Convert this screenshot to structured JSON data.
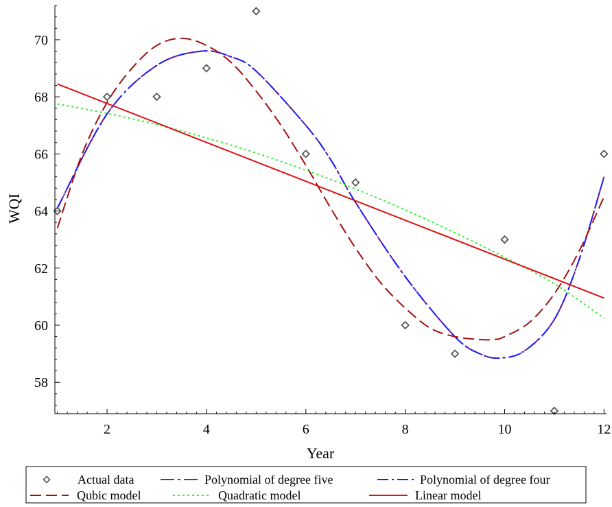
{
  "chart_data": {
    "type": "line",
    "title": "",
    "xlabel": "Year",
    "ylabel": "WQI",
    "xlim": [
      0.95,
      12.05
    ],
    "ylim": [
      56.9,
      71.2
    ],
    "x_ticks": [
      2,
      4,
      6,
      8,
      10,
      12
    ],
    "y_ticks": [
      58,
      60,
      62,
      64,
      66,
      68,
      70
    ],
    "grid": false,
    "legend_position": "bottom",
    "actual_data": {
      "name": "Actual data",
      "color": "#555555",
      "marker": "diamond",
      "x": [
        1,
        2,
        3,
        4,
        5,
        6,
        7,
        8,
        9,
        10,
        11,
        12
      ],
      "y": [
        64,
        68,
        68,
        69,
        71,
        66,
        65,
        60,
        59,
        63,
        57,
        66
      ]
    },
    "series": [
      {
        "name": "Polynomial of degree five",
        "color": "#7b1f80",
        "dash": "long-dash-dot",
        "x": [
          1,
          2,
          3,
          3.9,
          4.5,
          5,
          6,
          6.5,
          7,
          8,
          9,
          9.5,
          9.9,
          10.4,
          11,
          11.5,
          12
        ],
        "y": [
          64.1,
          67.4,
          69.1,
          69.6,
          69.4,
          68.9,
          67.0,
          65.8,
          64.3,
          61.7,
          59.6,
          59.0,
          58.85,
          59.1,
          60.2,
          62.3,
          65.2
        ]
      },
      {
        "name": "Polynomial of degree four",
        "color": "#1a1aff",
        "dash": "dash-dot",
        "x": [
          1,
          2,
          3,
          3.9,
          4.5,
          5,
          6,
          6.5,
          7,
          8,
          9,
          9.5,
          9.9,
          10.4,
          11,
          11.5,
          12
        ],
        "y": [
          64.1,
          67.4,
          69.1,
          69.6,
          69.4,
          68.9,
          67.0,
          65.8,
          64.3,
          61.7,
          59.6,
          59.0,
          58.85,
          59.1,
          60.2,
          62.3,
          65.2
        ]
      },
      {
        "name": "Qubic model",
        "color": "#a01010",
        "dash": "long-dash",
        "x": [
          1,
          1.5,
          2,
          2.5,
          3,
          3.5,
          4,
          4.5,
          5,
          5.5,
          6,
          6.5,
          7,
          7.5,
          8,
          8.5,
          9,
          9.5,
          9.8,
          10,
          10.5,
          11,
          11.5,
          12
        ],
        "y": [
          63.4,
          66.0,
          67.8,
          69.0,
          69.8,
          70.05,
          69.8,
          69.2,
          68.2,
          67.0,
          65.6,
          64.1,
          62.7,
          61.5,
          60.6,
          59.9,
          59.6,
          59.5,
          59.5,
          59.6,
          60.1,
          61.1,
          62.6,
          64.5
        ]
      },
      {
        "name": "Quadratic model",
        "color": "#33ee33",
        "dash": "dotted",
        "x": [
          1,
          2,
          3,
          4,
          5,
          6,
          7,
          8,
          9,
          10,
          11,
          12
        ],
        "y": [
          67.75,
          67.42,
          67.03,
          66.56,
          66.03,
          65.43,
          64.77,
          64.04,
          63.24,
          62.38,
          61.45,
          60.25
        ]
      },
      {
        "name": "Linear model",
        "color": "#dd1111",
        "dash": "solid",
        "x": [
          1,
          12
        ],
        "y": [
          68.45,
          60.95
        ]
      }
    ]
  }
}
